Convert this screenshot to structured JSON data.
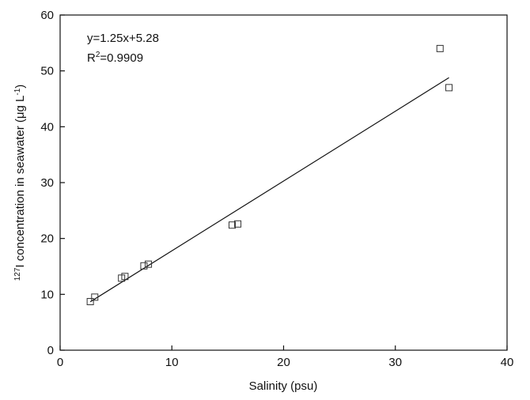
{
  "chart_data": {
    "type": "scatter",
    "xlabel": "Salinity (psu)",
    "ylabel": {
      "sup": "127",
      "text": "I concentration in seawater (μg L",
      "sup2": "-1",
      "end": ")"
    },
    "annotation": {
      "equation": "y=1.25x+5.28",
      "r": "R",
      "r_sup": "2",
      "r_value": "=0.9909"
    },
    "x": [
      2.7,
      3.1,
      5.5,
      5.8,
      7.5,
      7.9,
      15.4,
      15.9,
      34.0,
      34.8
    ],
    "values": [
      8.7,
      9.5,
      12.9,
      13.2,
      15.1,
      15.4,
      22.4,
      22.6,
      54.0,
      47.0
    ],
    "fit": {
      "x": [
        2.7,
        34.8
      ],
      "values": [
        8.66,
        48.78
      ]
    },
    "color": "#333333",
    "xlim": [
      0,
      40
    ],
    "xticks": [
      0,
      10,
      20,
      30,
      40
    ],
    "ylim": [
      0,
      60
    ],
    "yticks": [
      0,
      10,
      20,
      30,
      40,
      50,
      60
    ]
  }
}
